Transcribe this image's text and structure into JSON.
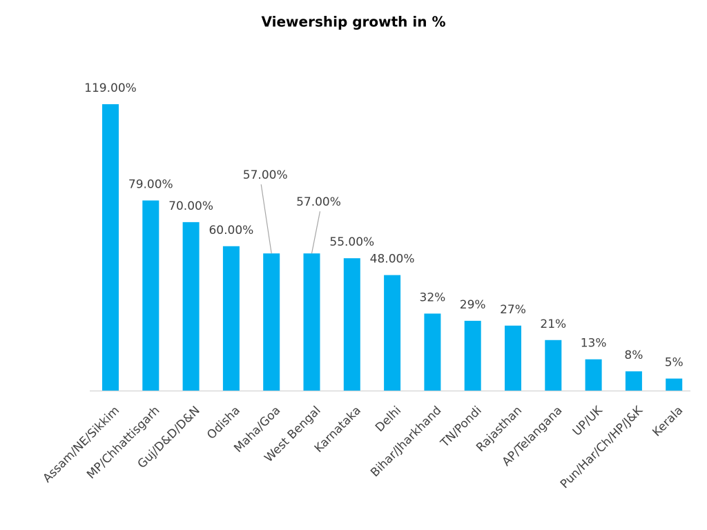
{
  "chart_data": {
    "type": "bar",
    "title": "Viewership growth in %",
    "categories": [
      "Assam/NE/Sikkim",
      "MP/Chhattisgarh",
      "Guj/D&D/D&N",
      "Odisha",
      "Maha/Goa",
      "West Bengal",
      "Karnataka",
      "Delhi",
      "Bihar/Jharkhand",
      "TN/Pondi",
      "Rajasthan",
      "AP/Telangana",
      "UP/UK",
      "Pun/Har/Ch/HP/J&K",
      "Kerala"
    ],
    "values": [
      119,
      79,
      70,
      60,
      57,
      57,
      55,
      48,
      32,
      29,
      27,
      21,
      13,
      8,
      5
    ],
    "value_labels": [
      "119.00%",
      "79.00%",
      "70.00%",
      "60.00%",
      "57.00%",
      "57.00%",
      "55.00%",
      "48.00%",
      "32%",
      "29%",
      "27%",
      "21%",
      "13%",
      "8%",
      "5%"
    ],
    "color": "#00b0f0"
  }
}
